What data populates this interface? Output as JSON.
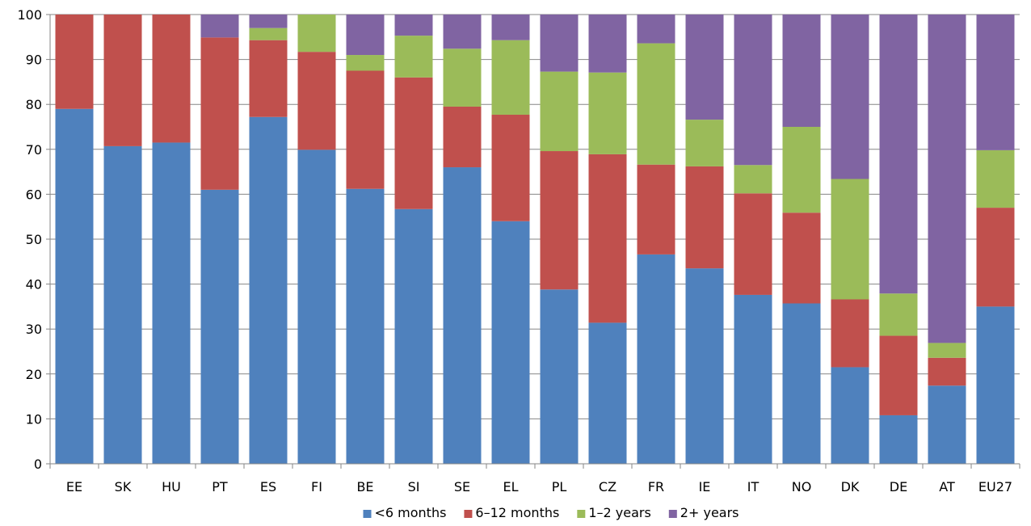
{
  "chart_data": {
    "type": "bar",
    "stacked": true,
    "title": "",
    "xlabel": "",
    "ylabel": "",
    "ylim": [
      0,
      100
    ],
    "yticks": [
      0,
      10,
      20,
      30,
      40,
      50,
      60,
      70,
      80,
      90,
      100
    ],
    "grid": true,
    "legend_position": "bottom",
    "categories": [
      "EE",
      "SK",
      "HU",
      "PT",
      "ES",
      "FI",
      "BE",
      "SI",
      "SE",
      "EL",
      "PL",
      "CZ",
      "FR",
      "IE",
      "IT",
      "NO",
      "DK",
      "DE",
      "AT",
      "EU27"
    ],
    "series": [
      {
        "name": "<6 months",
        "color": "#4f81bd",
        "values": [
          79,
          70.7,
          71.5,
          61,
          77.2,
          69.9,
          61.2,
          56.7,
          66,
          54,
          38.8,
          31.4,
          46.6,
          43.5,
          37.6,
          35.7,
          21.5,
          10.8,
          17.4,
          35
        ]
      },
      {
        "name": "6–12 months",
        "color": "#c0504d",
        "values": [
          21,
          29.3,
          28.5,
          33.9,
          17.1,
          21.8,
          26.3,
          29.3,
          13.5,
          23.7,
          30.8,
          37.5,
          20,
          22.7,
          22.6,
          20.2,
          15.1,
          17.7,
          6.2,
          22
        ]
      },
      {
        "name": "1–2 years",
        "color": "#9bbb59",
        "values": [
          0,
          0,
          0,
          0,
          2.7,
          8.3,
          3.5,
          9.3,
          12.9,
          16.6,
          17.7,
          18.2,
          27,
          10.4,
          6.3,
          19.1,
          26.8,
          9.4,
          3.3,
          12.8
        ]
      },
      {
        "name": "2+ years",
        "color": "#8064a2",
        "values": [
          0,
          0,
          0,
          5.1,
          3,
          0,
          9,
          4.7,
          7.6,
          5.7,
          12.7,
          12.9,
          6.4,
          23.4,
          33.5,
          25,
          36.6,
          62.1,
          73.1,
          30.2
        ]
      }
    ]
  }
}
